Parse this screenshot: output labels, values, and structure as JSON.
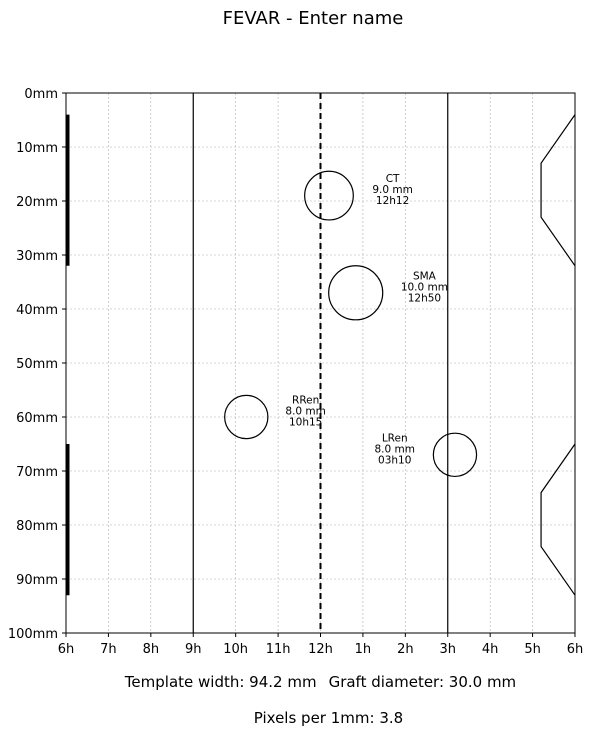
{
  "title": "FEVAR - Enter name",
  "x_ticks": [
    "6h",
    "7h",
    "8h",
    "9h",
    "10h",
    "11h",
    "12h",
    "1h",
    "2h",
    "3h",
    "4h",
    "5h",
    "6h"
  ],
  "y_ticks": [
    "0mm",
    "10mm",
    "20mm",
    "30mm",
    "40mm",
    "50mm",
    "60mm",
    "70mm",
    "80mm",
    "90mm",
    "100mm"
  ],
  "fenestrations": [
    {
      "name": "CT",
      "diameter_label": "9.0 mm",
      "clock": "12h12",
      "x_hours": 6.2,
      "y_mm": 19,
      "diameter_mm": 9.0,
      "label_x_hours": 7.7,
      "label_y_mm": 18
    },
    {
      "name": "SMA",
      "diameter_label": "10.0 mm",
      "clock": "12h50",
      "x_hours": 6.83,
      "y_mm": 37,
      "diameter_mm": 10.0,
      "label_x_hours": 8.45,
      "label_y_mm": 36
    },
    {
      "name": "RRen",
      "diameter_label": "8.0 mm",
      "clock": "10h15",
      "x_hours": 4.25,
      "y_mm": 60,
      "diameter_mm": 8.0,
      "label_x_hours": 5.65,
      "label_y_mm": 59
    },
    {
      "name": "LRen",
      "diameter_label": "8.0 mm",
      "clock": "03h10",
      "x_hours": 9.17,
      "y_mm": 67,
      "diameter_mm": 8.0,
      "label_x_hours": 7.75,
      "label_y_mm": 66
    }
  ],
  "footer": {
    "template_width": "Template width: 94.2 mm",
    "graft_diameter": "Graft diameter: 30.0 mm",
    "pixels_per_mm": "Pixels per 1mm: 3.8"
  }
}
